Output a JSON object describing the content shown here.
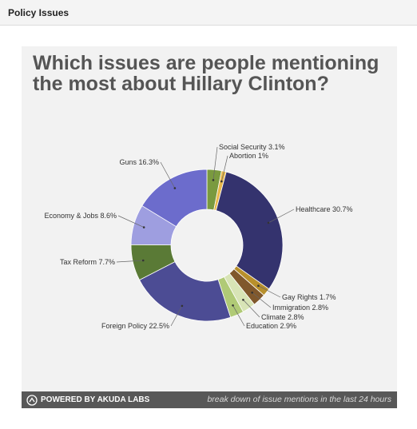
{
  "header": {
    "title": "Policy Issues"
  },
  "chart_data": {
    "type": "pie",
    "title": "Which issues are people mentioning the most about Hillary Clinton?",
    "slices": [
      {
        "name": "Social Security",
        "value": 3.1,
        "label": "Social Security 3.1%",
        "color": "#7a9a3f"
      },
      {
        "name": "Abortion",
        "value": 1.0,
        "label": "Abortion 1%",
        "color": "#e8b84a"
      },
      {
        "name": "Healthcare",
        "value": 30.7,
        "label": "Healthcare 30.7%",
        "color": "#34336e"
      },
      {
        "name": "Gay Rights",
        "value": 1.7,
        "label": "Gay Rights 1.7%",
        "color": "#b8902c"
      },
      {
        "name": "Immigration",
        "value": 2.8,
        "label": "Immigration 2.8%",
        "color": "#80582c"
      },
      {
        "name": "Climate",
        "value": 2.8,
        "label": "Climate 2.8%",
        "color": "#d8e4b6"
      },
      {
        "name": "Education",
        "value": 2.9,
        "label": "Education 2.9%",
        "color": "#b0ca76"
      },
      {
        "name": "Foreign Policy",
        "value": 22.5,
        "label": "Foreign Policy 22.5%",
        "color": "#4c4c94"
      },
      {
        "name": "Tax Reform",
        "value": 7.7,
        "label": "Tax Reform 7.7%",
        "color": "#5a7a36"
      },
      {
        "name": "Economy & Jobs",
        "value": 8.6,
        "label": "Economy & Jobs 8.6%",
        "color": "#9e9ee0"
      },
      {
        "name": "Guns",
        "value": 16.3,
        "label": "Guns 16.3%",
        "color": "#6c6ccc"
      }
    ],
    "legend": "none"
  },
  "footer": {
    "powered_by": "POWERED BY AKUDA LABS",
    "note": "break down of issue mentions in the last 24 hours"
  }
}
